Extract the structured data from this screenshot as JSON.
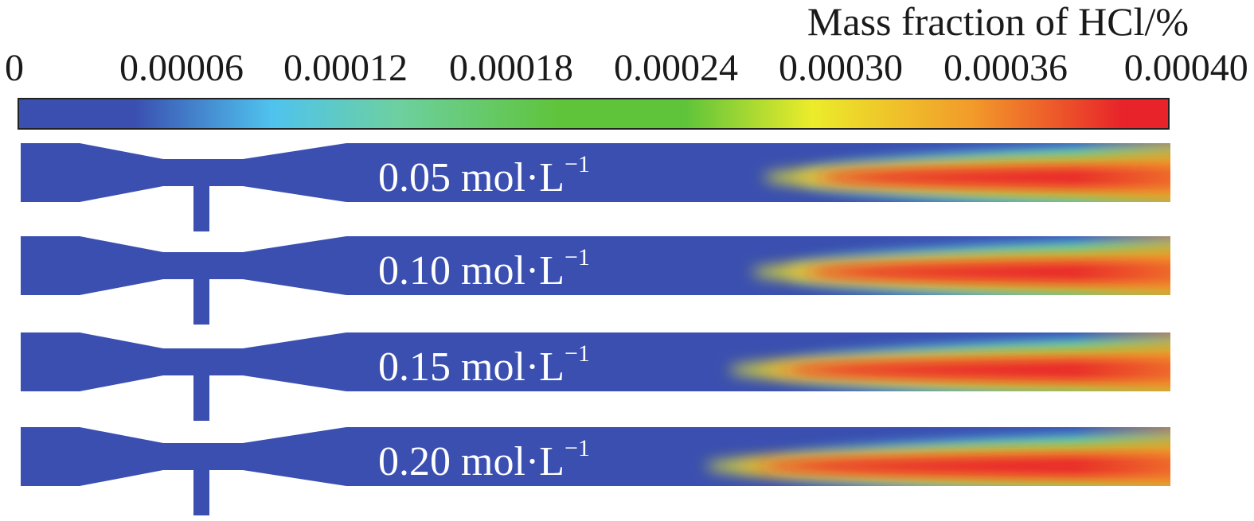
{
  "legend": {
    "title": "Mass fraction of HCl/%",
    "ticks": [
      "0",
      "0.00006",
      "0.00012",
      "0.00018",
      "0.00024",
      "0.00030",
      "0.00036",
      "0.00040"
    ],
    "tick_values": [
      0,
      6e-05,
      0.00012,
      0.00018,
      0.00024,
      0.0003,
      0.00036,
      0.0004
    ],
    "colormap": [
      "#3a4fb0",
      "#4fc3ee",
      "#6dd0a0",
      "#5fc43a",
      "#ecec2a",
      "#f29a2a",
      "#e8242a"
    ]
  },
  "chart_data": {
    "type": "heatmap",
    "title": "",
    "colorbar_label": "Mass fraction of HCl/%",
    "colorbar_range": [
      0,
      0.0004
    ],
    "unit": "mol·L",
    "panels": [
      {
        "label": "0.05 mol·L",
        "exponent": "−1",
        "concentration": 0.05,
        "plume_onset": 0.5,
        "red_core_start": 0.68
      },
      {
        "label": "0.10 mol·L",
        "exponent": "−1",
        "concentration": 0.1,
        "plume_onset": 0.49,
        "red_core_start": 0.67
      },
      {
        "label": "0.15 mol·L",
        "exponent": "−1",
        "concentration": 0.15,
        "plume_onset": 0.48,
        "red_core_start": 0.65
      },
      {
        "label": "0.20 mol·L",
        "exponent": "−1",
        "concentration": 0.2,
        "plume_onset": 0.47,
        "red_core_start": 0.63
      }
    ]
  }
}
